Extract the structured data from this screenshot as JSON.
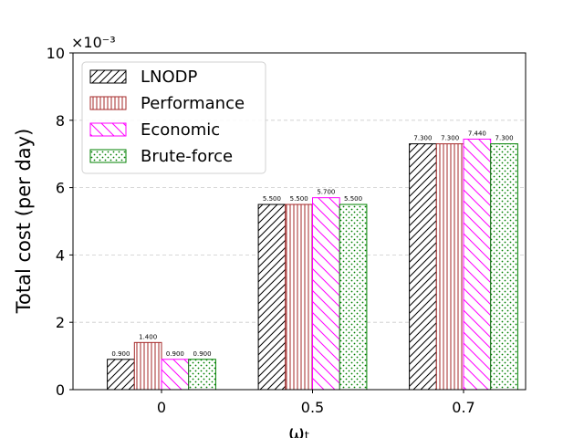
{
  "chart_data": {
    "type": "bar",
    "categories": [
      "0",
      "0.5",
      "0.7"
    ],
    "series": [
      {
        "name": "LNODP",
        "values": [
          0.9,
          5.5,
          7.3
        ],
        "labels": [
          "0.900",
          "5.500",
          "7.300"
        ],
        "color": "#000000",
        "pattern": "diagonal-up"
      },
      {
        "name": "Performance",
        "values": [
          1.4,
          5.5,
          7.3
        ],
        "labels": [
          "1.400",
          "5.500",
          "7.300"
        ],
        "color": "#a52a2a",
        "pattern": "vertical"
      },
      {
        "name": "Economic",
        "values": [
          0.9,
          5.7,
          7.44
        ],
        "labels": [
          "0.900",
          "5.700",
          "7.440"
        ],
        "color": "#ff00ff",
        "pattern": "diagonal-down"
      },
      {
        "name": "Brute-force",
        "values": [
          0.9,
          5.5,
          7.3
        ],
        "labels": [
          "0.900",
          "5.500",
          "7.300"
        ],
        "color": "#008000",
        "pattern": "dots"
      }
    ],
    "xlabel": "ωₜ",
    "ylabel": "Total cost (per day)",
    "ylim": [
      0,
      10
    ],
    "yticks": [
      "0",
      "2",
      "4",
      "6",
      "8",
      "10"
    ],
    "y_offset_text": "×10⁻³",
    "grid": "y-dashed",
    "legend_position": "top-left"
  }
}
